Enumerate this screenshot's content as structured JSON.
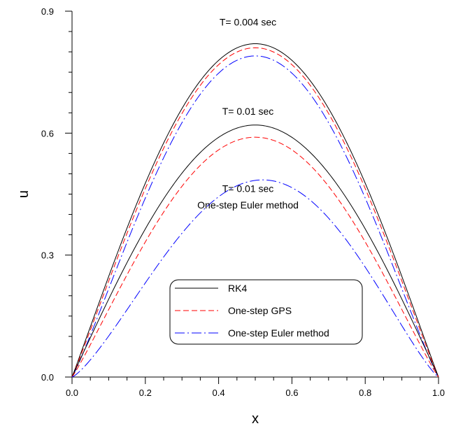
{
  "chart_data": {
    "type": "line",
    "xlabel": "x",
    "ylabel": "u",
    "xlim": [
      0,
      1
    ],
    "ylim": [
      0,
      0.9
    ],
    "xticks": [
      "0.0",
      "0.2",
      "0.4",
      "0.6",
      "0.8",
      "1.0"
    ],
    "yticks": [
      "0.0",
      "0.3",
      "0.6",
      "0.9"
    ],
    "grid": false,
    "legend_position": "bottom-center",
    "legend": [
      {
        "label": "RK4",
        "color": "#000000",
        "dash": "solid"
      },
      {
        "label": "One-step GPS",
        "color": "#ff0000",
        "dash": "dashed"
      },
      {
        "label": "One-step Euler method",
        "color": "#0000ff",
        "dash": "dashdot"
      }
    ],
    "annotations": [
      {
        "text": "T= 0.004 sec",
        "x": 0.48,
        "y": 0.865
      },
      {
        "text": "T= 0.01 sec",
        "x": 0.48,
        "y": 0.645
      },
      {
        "text": "T= 0.01 sec",
        "x": 0.48,
        "y": 0.455
      },
      {
        "text": "One-step Euler method",
        "x": 0.48,
        "y": 0.415
      }
    ],
    "series": [
      {
        "legend_index": 0,
        "time": "T= 0.004 sec",
        "peak": 0.82,
        "x_peak": 0.5,
        "shape": 0.02,
        "x": [
          0,
          0.1,
          0.2,
          0.3,
          0.4,
          0.5,
          0.6,
          0.7,
          0.8,
          0.9,
          1.0
        ],
        "values": [
          0.0,
          0.26,
          0.49,
          0.67,
          0.78,
          0.82,
          0.78,
          0.67,
          0.49,
          0.26,
          0.0
        ]
      },
      {
        "legend_index": 1,
        "time": "T= 0.004 sec",
        "peak": 0.81,
        "x_peak": 0.5,
        "shape": 0.05,
        "x": [
          0,
          0.1,
          0.2,
          0.3,
          0.4,
          0.5,
          0.6,
          0.7,
          0.8,
          0.9,
          1.0
        ],
        "values": [
          0.0,
          0.27,
          0.49,
          0.67,
          0.77,
          0.81,
          0.77,
          0.67,
          0.49,
          0.27,
          0.0
        ]
      },
      {
        "legend_index": 2,
        "time": "T= 0.004 sec",
        "peak": 0.79,
        "x_peak": 0.5,
        "shape": 0.1,
        "x": [
          0,
          0.1,
          0.2,
          0.3,
          0.4,
          0.5,
          0.6,
          0.7,
          0.8,
          0.9,
          1.0
        ],
        "values": [
          0.0,
          0.27,
          0.49,
          0.66,
          0.76,
          0.79,
          0.76,
          0.66,
          0.49,
          0.27,
          0.0
        ]
      },
      {
        "legend_index": 0,
        "time": "T= 0.01 sec",
        "peak": 0.62,
        "x_peak": 0.5,
        "shape": 0.0,
        "x": [
          0,
          0.1,
          0.2,
          0.3,
          0.4,
          0.5,
          0.6,
          0.7,
          0.8,
          0.9,
          1.0
        ],
        "values": [
          0.0,
          0.19,
          0.36,
          0.5,
          0.59,
          0.62,
          0.59,
          0.5,
          0.36,
          0.19,
          0.0
        ]
      },
      {
        "legend_index": 1,
        "time": "T= 0.01 sec",
        "peak": 0.59,
        "x_peak": 0.5,
        "shape": 0.08,
        "x": [
          0,
          0.1,
          0.2,
          0.3,
          0.4,
          0.5,
          0.6,
          0.7,
          0.8,
          0.9,
          1.0
        ],
        "values": [
          0.0,
          0.2,
          0.36,
          0.48,
          0.56,
          0.59,
          0.56,
          0.48,
          0.36,
          0.2,
          0.0
        ]
      },
      {
        "legend_index": 2,
        "time": "T= 0.01 sec",
        "peak": 0.485,
        "x_peak": 0.52,
        "shape": 0.2,
        "x": [
          0,
          0.1,
          0.2,
          0.3,
          0.4,
          0.5,
          0.6,
          0.7,
          0.8,
          0.9,
          1.0
        ],
        "values": [
          0.0,
          0.18,
          0.31,
          0.41,
          0.47,
          0.485,
          0.47,
          0.41,
          0.31,
          0.18,
          0.0
        ]
      }
    ]
  }
}
